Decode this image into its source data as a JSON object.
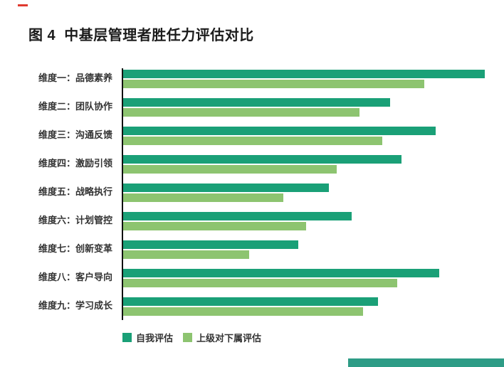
{
  "title": "图 4  中基层管理者胜任力评估对比",
  "legend": {
    "items": [
      {
        "label": "自我评估",
        "color": "#1aa077"
      },
      {
        "label": "上级对下属评估",
        "color": "#8dc470"
      }
    ]
  },
  "decorations": {
    "top_left_dash_color": "#e03a2f",
    "bottom_right_bar_color": "#2e9c86"
  },
  "chart_data": {
    "type": "bar",
    "orientation": "horizontal",
    "title": "图 4 中基层管理者胜任力评估对比",
    "categories": [
      "维度一：品德素养",
      "维度二：团队协作",
      "维度三：沟通反馈",
      "维度四：激励引领",
      "维度五：战略执行",
      "维度六：计划管控",
      "维度七：创新变革",
      "维度八：客户导向",
      "维度九：学习成长"
    ],
    "series": [
      {
        "name": "自我评估",
        "color": "#1aa077",
        "values": [
          95,
          70,
          82,
          73,
          54,
          60,
          46,
          83,
          67
        ]
      },
      {
        "name": "上级对下属评估",
        "color": "#8dc470",
        "values": [
          79,
          62,
          68,
          56,
          42,
          48,
          33,
          72,
          63
        ]
      }
    ],
    "xlim": [
      0,
      100
    ],
    "value_note": "axis has no tick labels; values estimated as percent of full axis width",
    "grid": false,
    "legend_position": "bottom-left",
    "axis_color": "#111111"
  }
}
